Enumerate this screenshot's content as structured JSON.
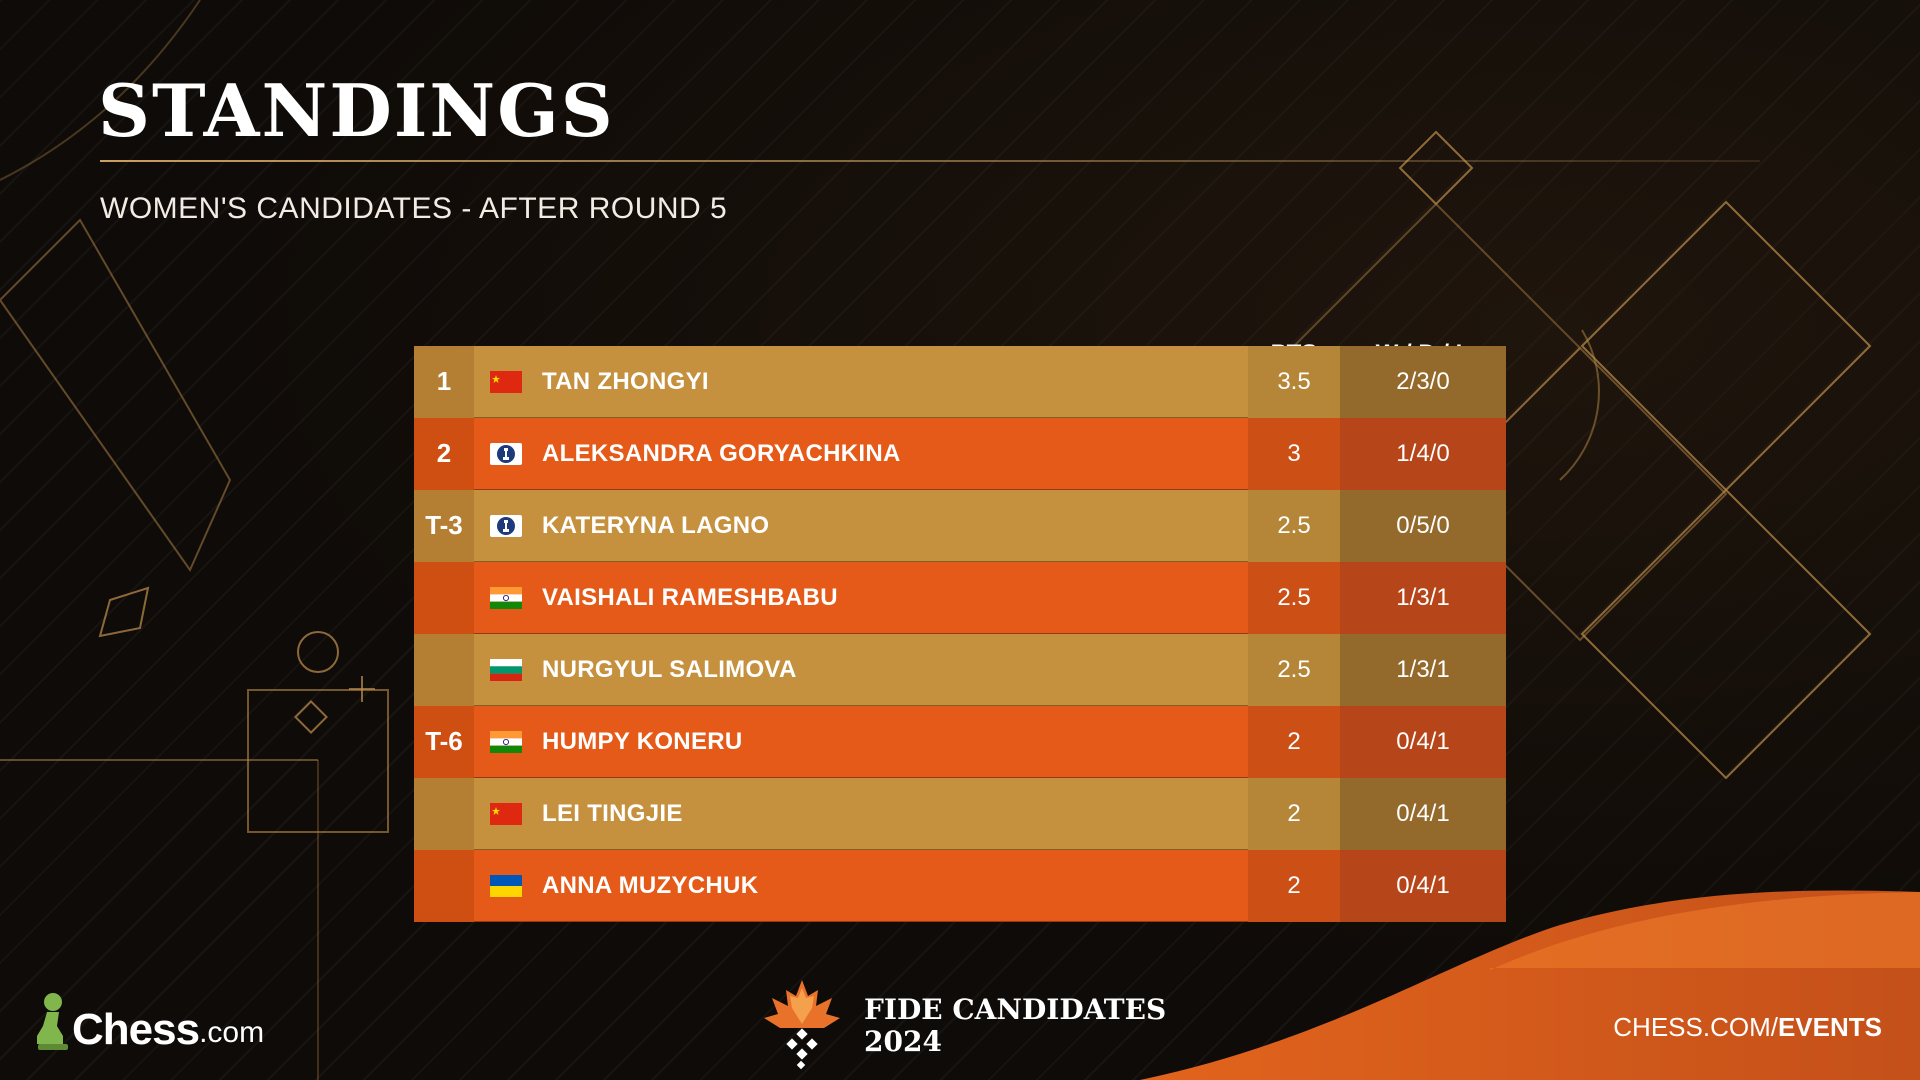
{
  "header": {
    "title": "STANDINGS",
    "subtitle": "WOMEN'S CANDIDATES - AFTER ROUND 5"
  },
  "columns": {
    "pts": "PTS",
    "wdl": "W / D / L"
  },
  "colors": {
    "gold_row": "#c6913e",
    "orange_row": "#e55a18",
    "background": "#0f0b08",
    "accent_line": "#caa060"
  },
  "standings": [
    {
      "rank": "1",
      "flag": "china-flag",
      "name": "TAN ZHONGYI",
      "pts": "3.5",
      "wdl": "2/3/0"
    },
    {
      "rank": "2",
      "flag": "fide-flag",
      "name": "ALEKSANDRA GORYACHKINA",
      "pts": "3",
      "wdl": "1/4/0"
    },
    {
      "rank": "T-3",
      "flag": "fide-flag",
      "name": "KATERYNA LAGNO",
      "pts": "2.5",
      "wdl": "0/5/0"
    },
    {
      "rank": "",
      "flag": "india-flag",
      "name": "VAISHALI RAMESHBABU",
      "pts": "2.5",
      "wdl": "1/3/1"
    },
    {
      "rank": "",
      "flag": "bulgaria-flag",
      "name": "NURGYUL SALIMOVA",
      "pts": "2.5",
      "wdl": "1/3/1"
    },
    {
      "rank": "T-6",
      "flag": "india-flag",
      "name": "HUMPY KONERU",
      "pts": "2",
      "wdl": "0/4/1"
    },
    {
      "rank": "",
      "flag": "china-flag",
      "name": "LEI TINGJIE",
      "pts": "2",
      "wdl": "0/4/1"
    },
    {
      "rank": "",
      "flag": "ukraine-flag",
      "name": "ANNA MUZYCHUK",
      "pts": "2",
      "wdl": "0/4/1"
    }
  ],
  "footer": {
    "logo_word": "Chess",
    "logo_suffix": ".com",
    "event_line1": "FIDE CANDIDATES",
    "event_line2": "2024",
    "url_prefix": "CHESS.COM/",
    "url_bold": "EVENTS"
  }
}
